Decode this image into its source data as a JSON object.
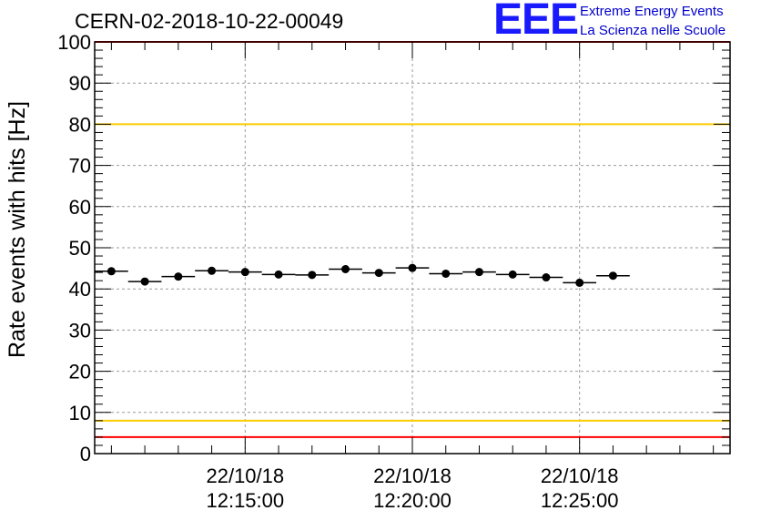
{
  "title": "CERN-02-2018-10-22-00049",
  "logo": {
    "letters": "EEE",
    "line1": "Extreme Energy Events",
    "line2": "La Scienza nelle Scuole"
  },
  "chart_data": {
    "type": "scatter",
    "ylabel": "Rate events with hits [Hz]",
    "ylim": [
      0,
      100
    ],
    "yticks": [
      "0",
      "10",
      "20",
      "30",
      "40",
      "50",
      "60",
      "70",
      "80",
      "90",
      "100"
    ],
    "xlim": [
      "12:10:30",
      "12:29:30"
    ],
    "xticks": [
      {
        "date": "22/10/18",
        "time": "12:15:00"
      },
      {
        "date": "22/10/18",
        "time": "12:20:00"
      },
      {
        "date": "22/10/18",
        "time": "12:25:00"
      }
    ],
    "grid": true,
    "bin_width_s": 60,
    "points": [
      {
        "x": "12:11:00",
        "y": 44.3
      },
      {
        "x": "12:12:00",
        "y": 41.8
      },
      {
        "x": "12:13:00",
        "y": 43.0
      },
      {
        "x": "12:14:00",
        "y": 44.4
      },
      {
        "x": "12:15:00",
        "y": 44.1
      },
      {
        "x": "12:16:00",
        "y": 43.5
      },
      {
        "x": "12:17:00",
        "y": 43.4
      },
      {
        "x": "12:18:00",
        "y": 44.8
      },
      {
        "x": "12:19:00",
        "y": 43.9
      },
      {
        "x": "12:20:00",
        "y": 45.1
      },
      {
        "x": "12:21:00",
        "y": 43.7
      },
      {
        "x": "12:22:00",
        "y": 44.1
      },
      {
        "x": "12:23:00",
        "y": 43.5
      },
      {
        "x": "12:24:00",
        "y": 42.8
      },
      {
        "x": "12:25:00",
        "y": 41.5
      },
      {
        "x": "12:26:00",
        "y": 43.2
      }
    ],
    "reference_lines": [
      {
        "y": 100,
        "color": "#ff0000"
      },
      {
        "y": 80,
        "color": "#ffcc00"
      },
      {
        "y": 8,
        "color": "#ffcc00"
      },
      {
        "y": 4,
        "color": "#ff0000"
      }
    ]
  }
}
